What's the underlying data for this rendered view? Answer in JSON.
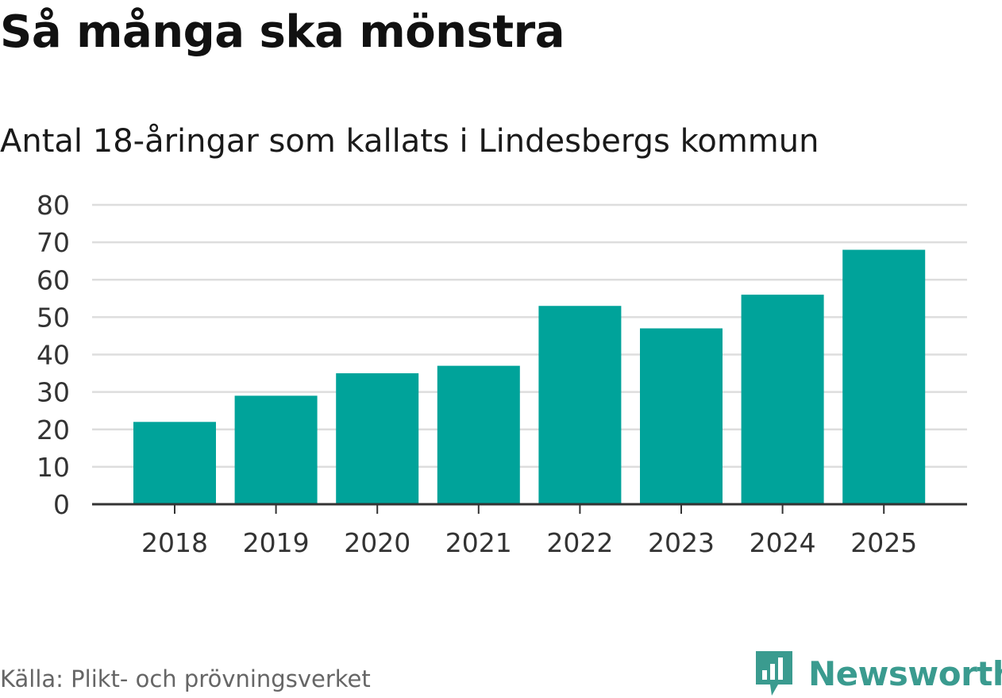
{
  "title": "Så många ska mönstra",
  "subtitle": "Antal 18-åringar som kallats i Lindesbergs kommun",
  "source": "Källa: Plikt- och prövningsverket",
  "brand": "Newsworthy",
  "colors": {
    "bar": "#00a39a",
    "grid": "#dddddd",
    "axis": "#333333",
    "brand": "#3a9b8f"
  },
  "chart_data": {
    "type": "bar",
    "categories": [
      "2018",
      "2019",
      "2020",
      "2021",
      "2022",
      "2023",
      "2024",
      "2025"
    ],
    "values": [
      22,
      29,
      35,
      37,
      53,
      47,
      56,
      68
    ],
    "yticks": [
      0,
      10,
      20,
      30,
      40,
      50,
      60,
      70,
      80
    ],
    "ylim": [
      0,
      80
    ],
    "title": "Så många ska mönstra",
    "xlabel": "",
    "ylabel": "",
    "grid": true
  }
}
